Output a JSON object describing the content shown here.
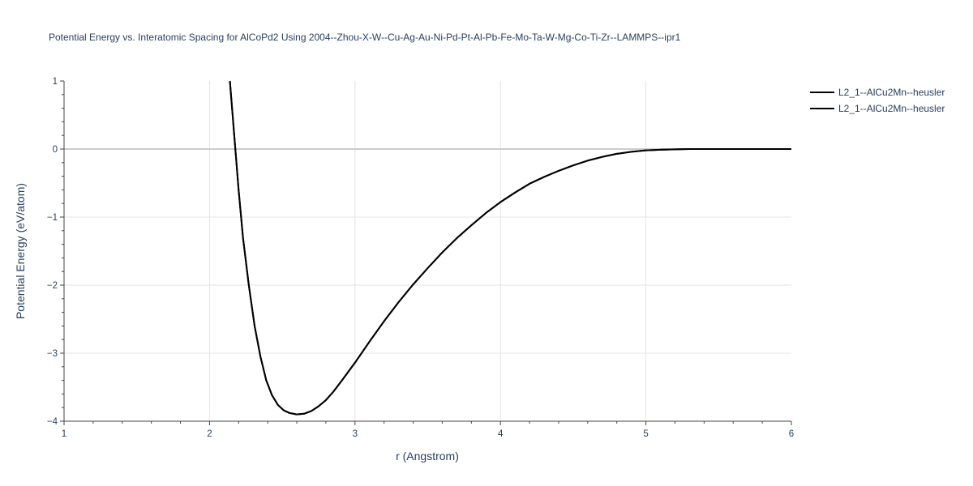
{
  "chart_data": {
    "type": "line",
    "title": "Potential Energy vs. Interatomic Spacing for AlCoPd2 Using 2004--Zhou-X-W--Cu-Ag-Au-Ni-Pd-Pt-Al-Pb-Fe-Mo-Ta-W-Mg-Co-Ti-Zr--LAMMPS--ipr1",
    "xlabel": "r (Angstrom)",
    "ylabel": "Potential Energy (eV/atom)",
    "xlim": [
      1,
      6
    ],
    "ylim": [
      -4,
      1
    ],
    "x_ticks": [
      "1",
      "2",
      "3",
      "4",
      "5",
      "6"
    ],
    "y_ticks": [
      "1",
      "0",
      "−1",
      "−2",
      "−3",
      "−4"
    ],
    "grid": true,
    "legend_position": "top-right",
    "series": [
      {
        "name": "L2_1--AlCu2Mn--heusler",
        "color": "#000000",
        "x": [
          2.14,
          2.17,
          2.2,
          2.23,
          2.27,
          2.31,
          2.35,
          2.39,
          2.43,
          2.47,
          2.51,
          2.55,
          2.6,
          2.65,
          2.7,
          2.75,
          2.8,
          2.85,
          2.9,
          3.0,
          3.1,
          3.2,
          3.3,
          3.4,
          3.5,
          3.6,
          3.7,
          3.8,
          3.9,
          4.0,
          4.1,
          4.2,
          4.3,
          4.4,
          4.5,
          4.6,
          4.7,
          4.8,
          4.9,
          5.0,
          5.1,
          5.2,
          5.3,
          5.4,
          5.6,
          5.8,
          6.0
        ],
        "y": [
          1.0,
          0.2,
          -0.6,
          -1.3,
          -2.0,
          -2.6,
          -3.05,
          -3.4,
          -3.62,
          -3.76,
          -3.84,
          -3.88,
          -3.9,
          -3.89,
          -3.85,
          -3.78,
          -3.69,
          -3.57,
          -3.43,
          -3.14,
          -2.83,
          -2.53,
          -2.25,
          -1.99,
          -1.75,
          -1.52,
          -1.31,
          -1.12,
          -0.94,
          -0.78,
          -0.64,
          -0.51,
          -0.41,
          -0.32,
          -0.24,
          -0.17,
          -0.115,
          -0.07,
          -0.04,
          -0.02,
          -0.01,
          -0.005,
          0.0,
          0.0,
          0.0,
          0.0,
          0.0
        ]
      },
      {
        "name": "L2_1--AlCu2Mn--heusler",
        "color": "#000000",
        "x": [
          2.14,
          2.17,
          2.2,
          2.23,
          2.27,
          2.31,
          2.35,
          2.39,
          2.43,
          2.47,
          2.51,
          2.55,
          2.6,
          2.65,
          2.7,
          2.75,
          2.8,
          2.85,
          2.9,
          3.0,
          3.1,
          3.2,
          3.3,
          3.4,
          3.5,
          3.6,
          3.7,
          3.8,
          3.9,
          4.0,
          4.1,
          4.2,
          4.3,
          4.4,
          4.5,
          4.6,
          4.7,
          4.8,
          4.9,
          5.0,
          5.1,
          5.2,
          5.3,
          5.4,
          5.6,
          5.8,
          6.0
        ],
        "y": [
          1.0,
          0.2,
          -0.6,
          -1.3,
          -2.0,
          -2.6,
          -3.05,
          -3.4,
          -3.62,
          -3.76,
          -3.84,
          -3.88,
          -3.9,
          -3.89,
          -3.85,
          -3.78,
          -3.69,
          -3.57,
          -3.43,
          -3.14,
          -2.83,
          -2.53,
          -2.25,
          -1.99,
          -1.75,
          -1.52,
          -1.31,
          -1.12,
          -0.94,
          -0.78,
          -0.64,
          -0.51,
          -0.41,
          -0.32,
          -0.24,
          -0.17,
          -0.115,
          -0.07,
          -0.04,
          -0.02,
          -0.01,
          -0.005,
          0.0,
          0.0,
          0.0,
          0.0,
          0.0
        ]
      }
    ]
  }
}
